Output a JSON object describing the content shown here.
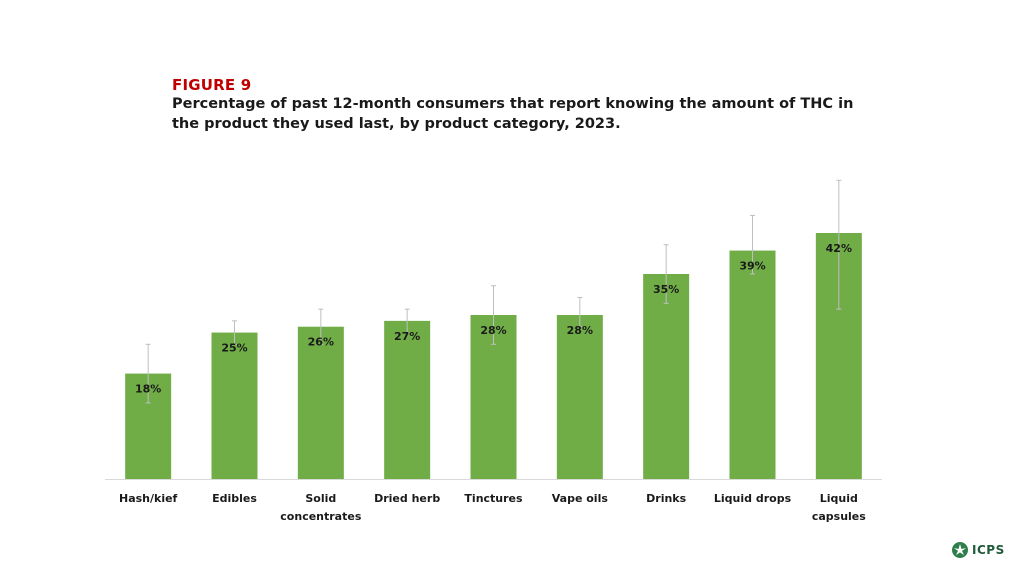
{
  "figure_label": "FIGURE 9",
  "figure_title": "Percentage of past 12-month consumers that report knowing the amount of THC in the product they used last, by product category, 2023.",
  "logo_text": "ICPS",
  "colors": {
    "bar": "#70ad47",
    "label_red": "#c00000",
    "logo": "#1f5a3a"
  },
  "chart_data": {
    "type": "bar",
    "categories": [
      [
        "Hash/kief"
      ],
      [
        "Edibles"
      ],
      [
        "Solid",
        "concentrates"
      ],
      [
        "Dried herb"
      ],
      [
        "Tinctures"
      ],
      [
        "Vape oils"
      ],
      [
        "Drinks"
      ],
      [
        "Liquid drops"
      ],
      [
        "Liquid",
        "capsules"
      ]
    ],
    "values": [
      18,
      25,
      26,
      27,
      28,
      28,
      35,
      39,
      42
    ],
    "data_labels": [
      "18%",
      "25%",
      "26%",
      "27%",
      "28%",
      "28%",
      "35%",
      "39%",
      "42%"
    ],
    "error_bars": [
      [
        13,
        23
      ],
      [
        23,
        27
      ],
      [
        23,
        29
      ],
      [
        25,
        29
      ],
      [
        23,
        33
      ],
      [
        26,
        31
      ],
      [
        30,
        40
      ],
      [
        35,
        45
      ],
      [
        29,
        51
      ]
    ],
    "ylim": [
      0,
      55
    ],
    "grid": false,
    "title": "",
    "xlabel": "",
    "ylabel": ""
  }
}
